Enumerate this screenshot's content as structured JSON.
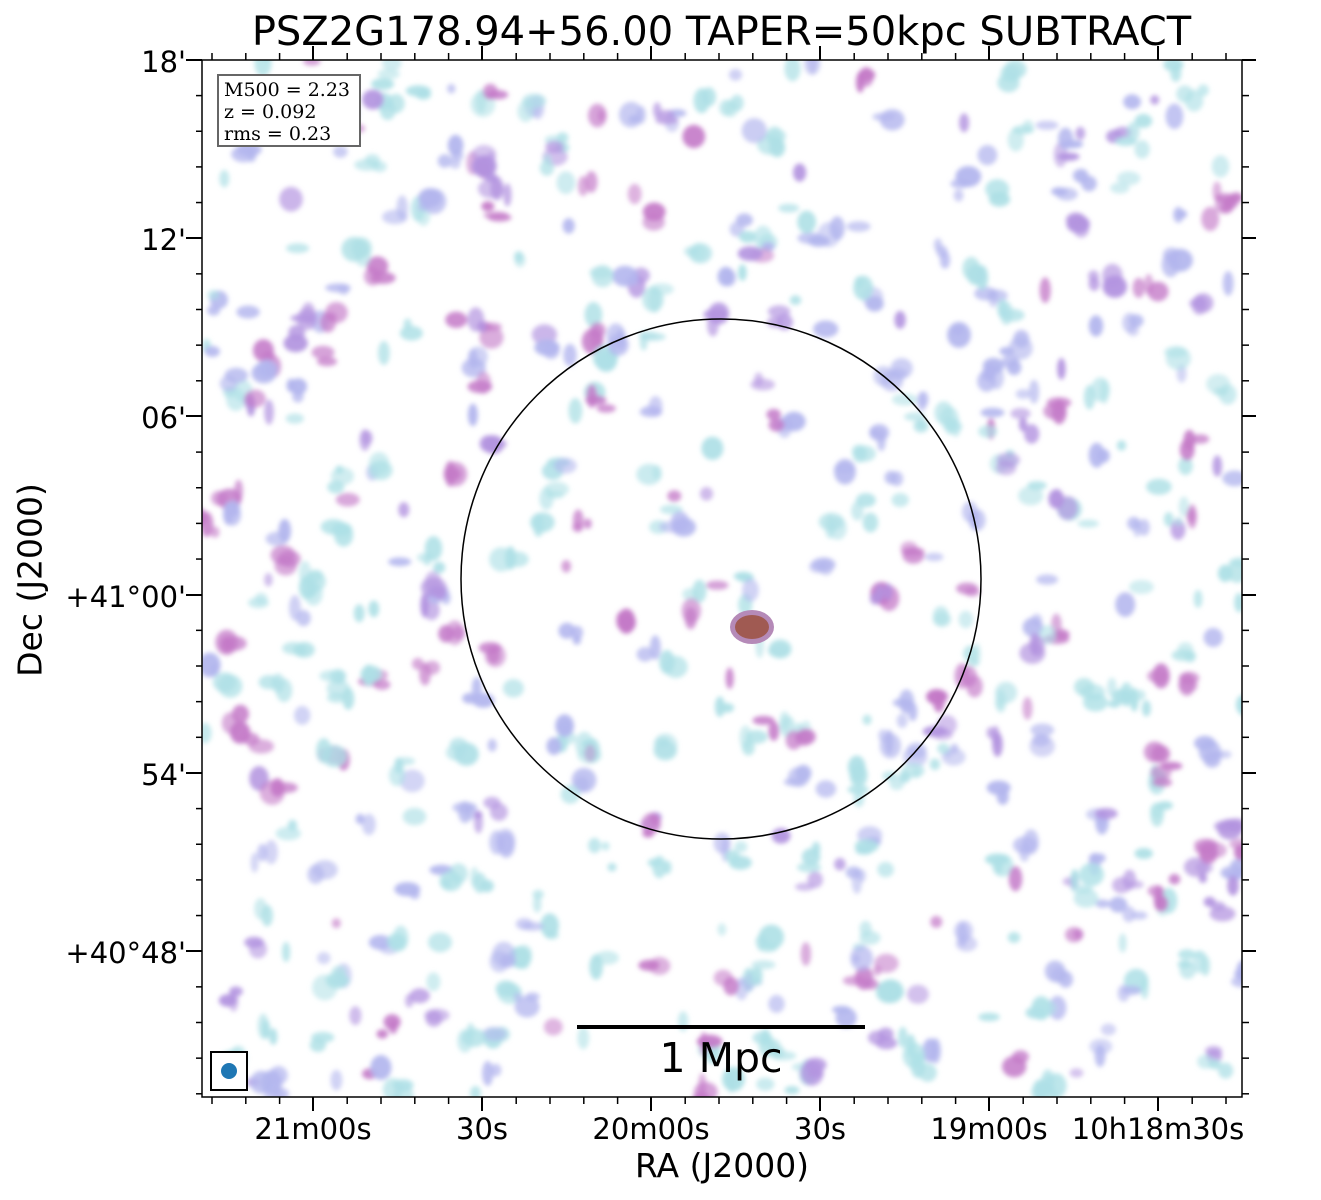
{
  "title": "PSZ2G178.94+56.00 TAPER=50kpc SUBTRACT",
  "axes": {
    "xlabel": "RA (J2000)",
    "ylabel": "Dec (J2000)",
    "yticks": [
      "18'",
      "12'",
      "06'",
      "+41°00'",
      "54'",
      "+40°48'"
    ],
    "xticks": [
      "21m00s",
      "30s",
      "20m00s",
      "30s",
      "19m00s",
      "10h18m30s"
    ]
  },
  "info": {
    "m500": "M500 = 2.23",
    "z": "z = 0.092",
    "rms": "rms = 0.23"
  },
  "scalebar": {
    "label": "1 Mpc"
  },
  "colors": {
    "cyan": "#aee0e6",
    "blue": "#b3b6ee",
    "violet": "#b394e0",
    "magenta": "#c47ac8",
    "brown": "#a05a52",
    "beam": "#1f77b4"
  }
}
